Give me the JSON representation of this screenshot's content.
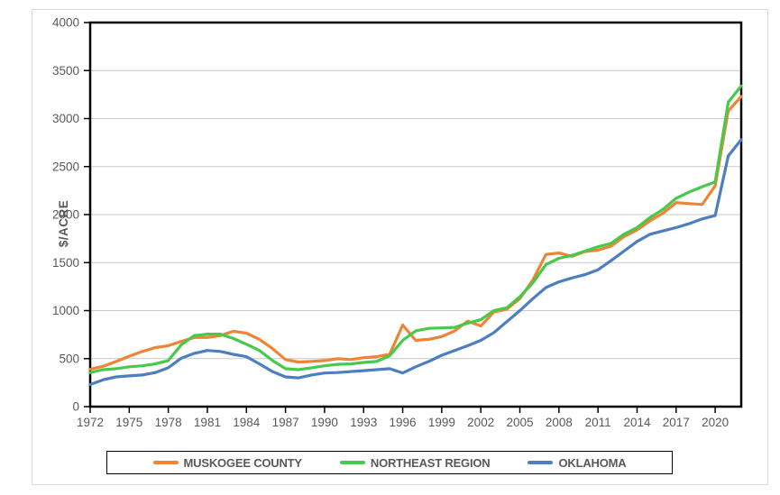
{
  "y_axis_title": "$/ACRE",
  "chart_data": {
    "type": "line",
    "title": "",
    "xlabel": "",
    "ylabel": "$/ACRE",
    "ylim": [
      0,
      4000
    ],
    "y_ticks": [
      0,
      500,
      1000,
      1500,
      2000,
      2500,
      3000,
      3500,
      4000
    ],
    "grid": "horizontal",
    "legend_position": "bottom",
    "axis_color": "#000000",
    "gridline_color": "#c9c9c9",
    "tick_label_color": "#595959",
    "x": [
      1972,
      1973,
      1974,
      1975,
      1976,
      1977,
      1978,
      1979,
      1980,
      1981,
      1982,
      1983,
      1984,
      1985,
      1986,
      1987,
      1988,
      1989,
      1990,
      1991,
      1992,
      1993,
      1994,
      1995,
      1996,
      1997,
      1998,
      1999,
      2000,
      2001,
      2002,
      2003,
      2004,
      2005,
      2006,
      2007,
      2008,
      2009,
      2010,
      2011,
      2012,
      2013,
      2014,
      2015,
      2016,
      2017,
      2018,
      2019,
      2020,
      2021,
      2022
    ],
    "x_tick_labels": [
      "1972",
      "1975",
      "1978",
      "1981",
      "1984",
      "1987",
      "1990",
      "1993",
      "1996",
      "1999",
      "2002",
      "2005",
      "2008",
      "2011",
      "2014",
      "2017",
      "2020"
    ],
    "series": [
      {
        "name": "MUSKOGEE COUNTY",
        "color": "#EE8434",
        "values": [
          390,
          420,
          470,
          525,
          575,
          615,
          635,
          680,
          720,
          720,
          740,
          785,
          765,
          700,
          605,
          490,
          465,
          470,
          480,
          500,
          490,
          510,
          520,
          545,
          850,
          690,
          700,
          730,
          790,
          890,
          840,
          985,
          1015,
          1125,
          1320,
          1585,
          1600,
          1565,
          1615,
          1630,
          1670,
          1770,
          1840,
          1935,
          2015,
          2125,
          2115,
          2105,
          2300,
          3080,
          3230
        ]
      },
      {
        "name": "NORTHEAST REGION",
        "color": "#48C94C",
        "values": [
          355,
          385,
          395,
          415,
          425,
          445,
          480,
          645,
          740,
          755,
          755,
          710,
          650,
          585,
          480,
          395,
          385,
          405,
          425,
          440,
          445,
          460,
          470,
          530,
          690,
          790,
          815,
          820,
          825,
          870,
          905,
          1000,
          1030,
          1145,
          1290,
          1480,
          1545,
          1575,
          1620,
          1665,
          1700,
          1795,
          1865,
          1970,
          2055,
          2170,
          2235,
          2290,
          2340,
          3170,
          3340
        ]
      },
      {
        "name": "OKLAHOMA",
        "color": "#4D7EBF",
        "values": [
          230,
          280,
          310,
          320,
          330,
          355,
          405,
          505,
          555,
          585,
          575,
          545,
          520,
          445,
          365,
          310,
          300,
          330,
          350,
          355,
          365,
          375,
          385,
          395,
          350,
          415,
          470,
          535,
          585,
          635,
          690,
          770,
          885,
          1000,
          1125,
          1240,
          1300,
          1340,
          1375,
          1425,
          1520,
          1620,
          1720,
          1795,
          1830,
          1865,
          1905,
          1955,
          1990,
          2610,
          2780
        ]
      }
    ]
  }
}
